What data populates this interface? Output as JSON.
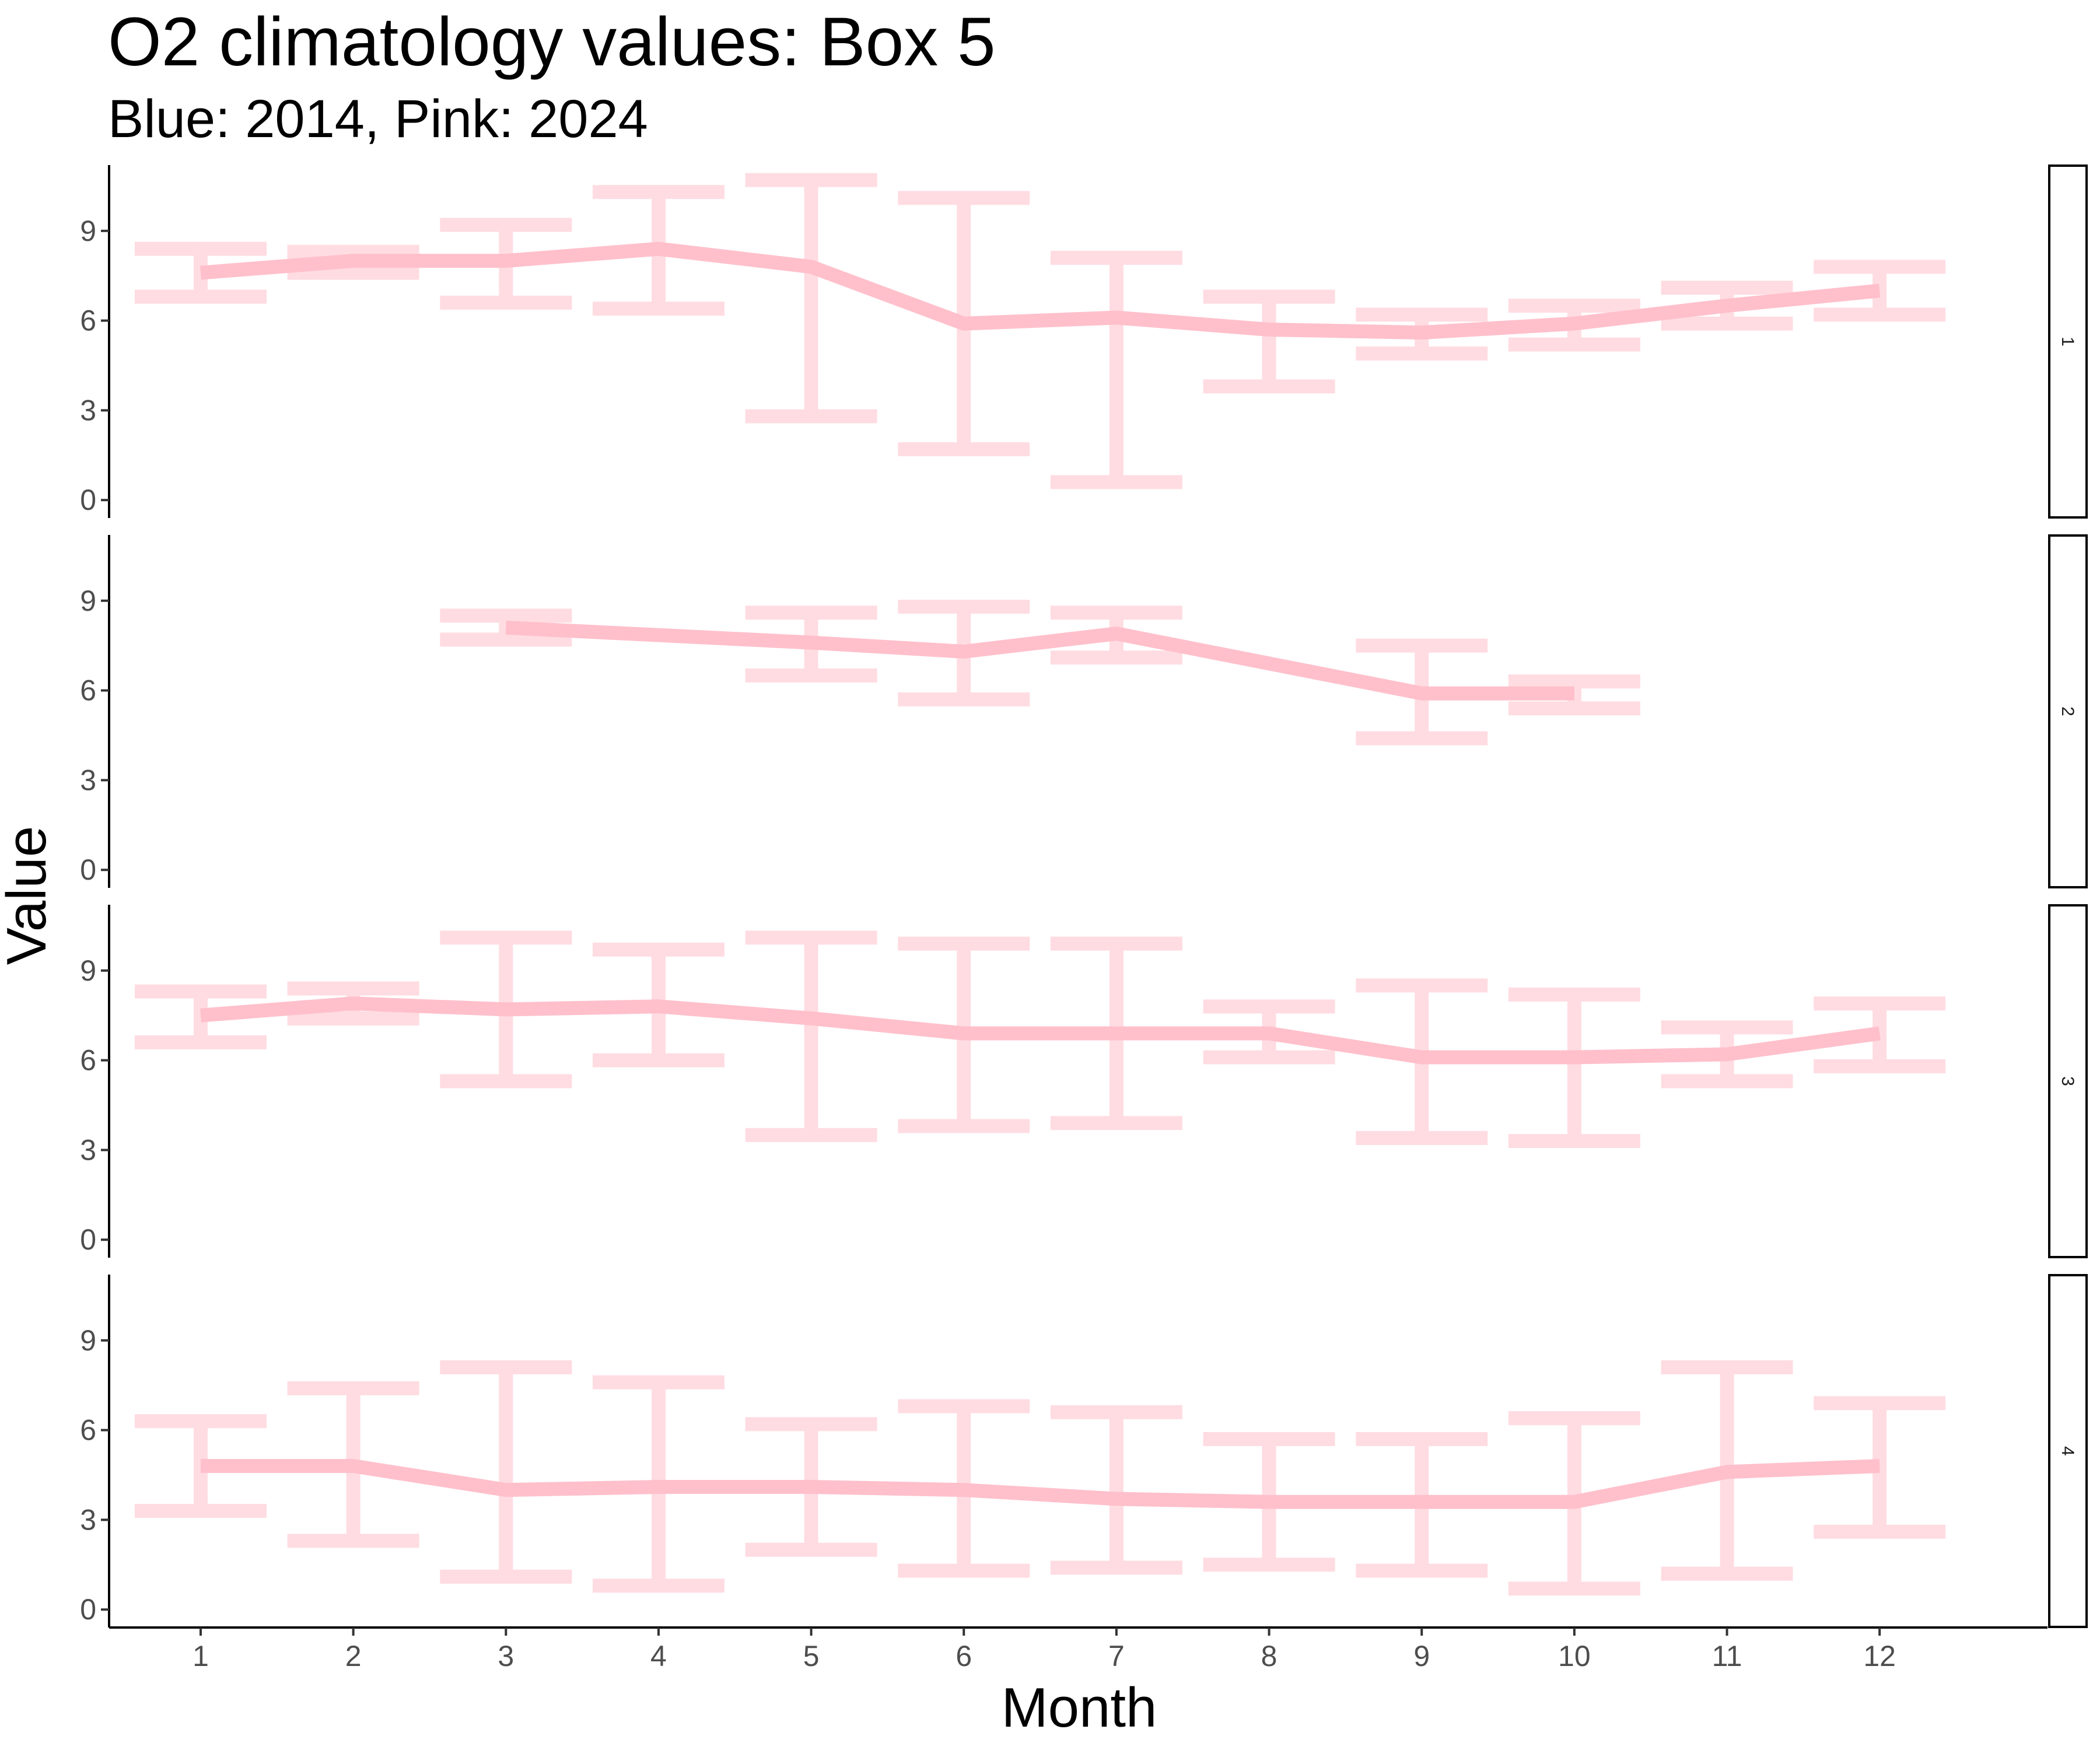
{
  "chart_data": {
    "type": "line",
    "title": "O2 climatology values: Box 5",
    "subtitle": "Blue: 2014, Pink: 2024",
    "xlabel": "Month",
    "ylabel": "Value",
    "x_ticks": [
      "1",
      "2",
      "3",
      "4",
      "5",
      "6",
      "7",
      "8",
      "9",
      "10",
      "11",
      "12"
    ],
    "y_ticks": [
      "0",
      "3",
      "6",
      "9"
    ],
    "xlim": [
      0.4,
      13.1
    ],
    "ylim": [
      -0.6,
      11.2
    ],
    "grid": false,
    "colors": {
      "line": "#ffc0cb",
      "errorbar": "#ffc0cb",
      "axis": "#000000",
      "strip_border": "#000000"
    },
    "panels": [
      {
        "label": "1",
        "x": [
          1,
          2,
          3,
          4,
          5,
          6,
          7,
          8,
          9,
          10,
          11,
          12
        ],
        "y": [
          7.6,
          8.0,
          8.0,
          8.4,
          7.8,
          5.9,
          6.1,
          5.7,
          5.6,
          5.9,
          6.5,
          7.0
        ],
        "ymin": [
          6.8,
          7.6,
          6.6,
          6.4,
          2.8,
          1.7,
          0.6,
          3.8,
          4.9,
          5.2,
          5.9,
          6.2
        ],
        "ymax": [
          8.4,
          8.3,
          9.2,
          10.3,
          10.7,
          10.1,
          8.1,
          6.8,
          6.2,
          6.5,
          7.1,
          7.8
        ]
      },
      {
        "label": "2",
        "x": [
          3,
          5,
          6,
          7,
          9,
          10
        ],
        "y": [
          8.1,
          7.6,
          7.3,
          7.9,
          5.9,
          5.9
        ],
        "ymin": [
          7.7,
          6.5,
          5.7,
          7.1,
          4.4,
          5.4
        ],
        "ymax": [
          8.5,
          8.6,
          8.8,
          8.6,
          7.5,
          6.3
        ]
      },
      {
        "label": "3",
        "x": [
          1,
          2,
          3,
          4,
          5,
          6,
          7,
          8,
          9,
          10,
          11,
          12
        ],
        "y": [
          7.5,
          7.9,
          7.7,
          7.8,
          7.4,
          6.9,
          6.9,
          6.9,
          6.1,
          6.1,
          6.2,
          6.9
        ],
        "ymin": [
          6.6,
          7.4,
          5.3,
          6.0,
          3.5,
          3.8,
          3.9,
          6.1,
          3.4,
          3.3,
          5.3,
          5.8
        ],
        "ymax": [
          8.3,
          8.4,
          10.1,
          9.7,
          10.1,
          9.9,
          9.9,
          7.8,
          8.5,
          8.2,
          7.1,
          7.9
        ]
      },
      {
        "label": "4",
        "x": [
          1,
          2,
          3,
          4,
          5,
          6,
          7,
          8,
          9,
          10,
          11,
          12
        ],
        "y": [
          4.8,
          4.8,
          4.0,
          4.1,
          4.1,
          4.0,
          3.7,
          3.6,
          3.6,
          3.6,
          4.6,
          4.8
        ],
        "ymin": [
          3.3,
          2.3,
          1.1,
          0.8,
          2.0,
          1.3,
          1.4,
          1.5,
          1.3,
          0.7,
          1.2,
          2.6
        ],
        "ymax": [
          6.3,
          7.4,
          8.1,
          7.6,
          6.2,
          6.8,
          6.6,
          5.7,
          5.7,
          6.4,
          8.1,
          6.9
        ]
      }
    ]
  }
}
